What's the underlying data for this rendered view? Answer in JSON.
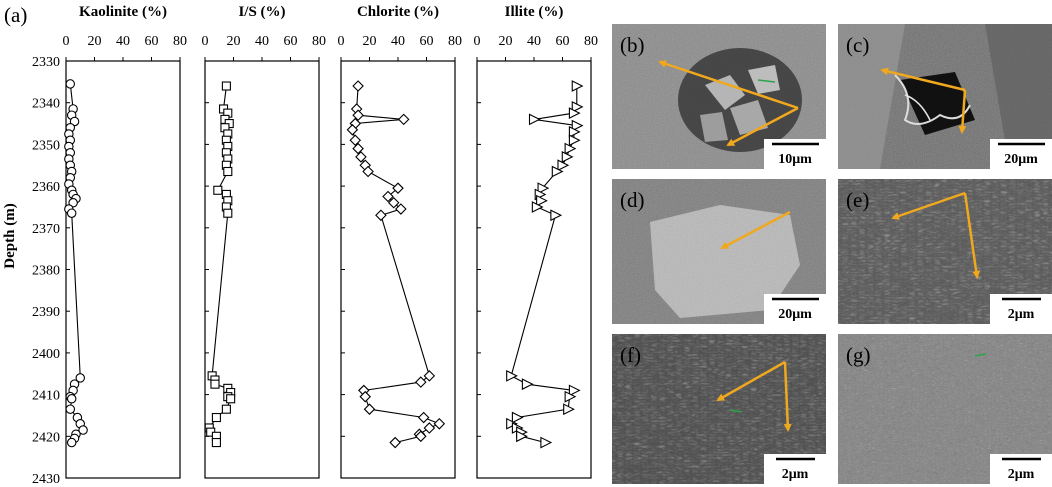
{
  "chart_data": [
    {
      "type": "line",
      "title": "Kaolinite (%)",
      "panel_label": "(a)",
      "ylabel": "Depth (m)",
      "xlim": [
        0,
        80
      ],
      "ylim": [
        2330,
        2430
      ],
      "x_ticks": [
        0,
        20,
        40,
        60,
        80
      ],
      "y_ticks": [
        2330,
        2340,
        2350,
        2360,
        2370,
        2380,
        2390,
        2400,
        2410,
        2420,
        2430
      ],
      "y_inverted": true,
      "marker": "circle",
      "points": [
        [
          3,
          2335.5
        ],
        [
          5,
          2341.5
        ],
        [
          4,
          2343
        ],
        [
          6,
          2344.5
        ],
        [
          3,
          2346
        ],
        [
          2,
          2347.5
        ],
        [
          3,
          2349
        ],
        [
          2,
          2350.5
        ],
        [
          3,
          2352
        ],
        [
          2,
          2353.5
        ],
        [
          3,
          2355
        ],
        [
          4,
          2356.5
        ],
        [
          3,
          2358
        ],
        [
          2,
          2359.5
        ],
        [
          4,
          2361
        ],
        [
          5,
          2362
        ],
        [
          7,
          2363
        ],
        [
          5,
          2364
        ],
        [
          2,
          2365.5
        ],
        [
          4,
          2366.5
        ],
        [
          10,
          2406
        ],
        [
          6,
          2407.5
        ],
        [
          5,
          2409
        ],
        [
          3,
          2410.5
        ],
        [
          4,
          2411
        ],
        [
          3,
          2413.5
        ],
        [
          8,
          2415.5
        ],
        [
          10,
          2417
        ],
        [
          12,
          2418.5
        ],
        [
          7,
          2419.5
        ],
        [
          6,
          2420.5
        ],
        [
          4,
          2421.5
        ]
      ]
    },
    {
      "type": "line",
      "title": "I/S (%)",
      "xlim": [
        0,
        80
      ],
      "ylim": [
        2330,
        2430
      ],
      "x_ticks": [
        0,
        20,
        40,
        60,
        80
      ],
      "y_inverted": true,
      "marker": "square",
      "points": [
        [
          15,
          2336
        ],
        [
          13,
          2341.5
        ],
        [
          16,
          2342.5
        ],
        [
          14,
          2344
        ],
        [
          17,
          2345
        ],
        [
          14,
          2346
        ],
        [
          16,
          2347.5
        ],
        [
          15,
          2349
        ],
        [
          16,
          2350.5
        ],
        [
          15,
          2352
        ],
        [
          16,
          2353.5
        ],
        [
          15,
          2355
        ],
        [
          16,
          2356.5
        ],
        [
          9,
          2361
        ],
        [
          15,
          2362
        ],
        [
          16,
          2363.5
        ],
        [
          15,
          2365
        ],
        [
          16,
          2366.5
        ],
        [
          5,
          2405.5
        ],
        [
          7,
          2406.5
        ],
        [
          7,
          2407.5
        ],
        [
          16,
          2408.5
        ],
        [
          18,
          2409.5
        ],
        [
          16,
          2410.5
        ],
        [
          18,
          2411
        ],
        [
          15,
          2413.5
        ],
        [
          8,
          2415.5
        ],
        [
          3,
          2418
        ],
        [
          4,
          2419
        ],
        [
          8,
          2420
        ],
        [
          8,
          2421.5
        ]
      ]
    },
    {
      "type": "line",
      "title": "Chlorite (%)",
      "xlim": [
        0,
        80
      ],
      "ylim": [
        2330,
        2430
      ],
      "x_ticks": [
        0,
        20,
        40,
        60,
        80
      ],
      "y_inverted": true,
      "marker": "diamond",
      "points": [
        [
          12,
          2336
        ],
        [
          11,
          2341.5
        ],
        [
          12,
          2343
        ],
        [
          44,
          2344
        ],
        [
          10,
          2345
        ],
        [
          8,
          2346.5
        ],
        [
          10,
          2349
        ],
        [
          12,
          2351
        ],
        [
          14,
          2353
        ],
        [
          17,
          2355
        ],
        [
          19,
          2356.5
        ],
        [
          40,
          2360.5
        ],
        [
          33,
          2362.5
        ],
        [
          37,
          2364
        ],
        [
          42,
          2365.5
        ],
        [
          28,
          2367
        ],
        [
          62,
          2405.5
        ],
        [
          56,
          2407
        ],
        [
          16,
          2409
        ],
        [
          17,
          2410.5
        ],
        [
          20,
          2413.5
        ],
        [
          58,
          2415.5
        ],
        [
          69,
          2417
        ],
        [
          62,
          2418
        ],
        [
          55,
          2419.5
        ],
        [
          56,
          2420
        ],
        [
          38,
          2421.5
        ]
      ]
    },
    {
      "type": "line",
      "title": "Illite (%)",
      "xlim": [
        0,
        80
      ],
      "ylim": [
        2330,
        2430
      ],
      "x_ticks": [
        0,
        20,
        40,
        60,
        80
      ],
      "y_inverted": true,
      "marker": "triangle-right",
      "points": [
        [
          70,
          2336
        ],
        [
          70,
          2341
        ],
        [
          68,
          2342.5
        ],
        [
          40,
          2344
        ],
        [
          70,
          2345.5
        ],
        [
          68,
          2347
        ],
        [
          68,
          2349
        ],
        [
          65,
          2351
        ],
        [
          63,
          2353
        ],
        [
          60,
          2355
        ],
        [
          56,
          2356.5
        ],
        [
          46,
          2360.5
        ],
        [
          44,
          2362
        ],
        [
          45,
          2363.5
        ],
        [
          42,
          2365
        ],
        [
          55,
          2367
        ],
        [
          24,
          2405.5
        ],
        [
          35,
          2407.5
        ],
        [
          68,
          2409
        ],
        [
          65,
          2410.5
        ],
        [
          64,
          2413.5
        ],
        [
          28,
          2415.5
        ],
        [
          24,
          2417
        ],
        [
          28,
          2418
        ],
        [
          31,
          2419
        ],
        [
          31,
          2420
        ],
        [
          48,
          2421.5
        ]
      ]
    }
  ],
  "photos": [
    {
      "label": "(b)",
      "scale": "10μm"
    },
    {
      "label": "(c)",
      "scale": "20μm"
    },
    {
      "label": "(d)",
      "scale": "20μm"
    },
    {
      "label": "(e)",
      "scale": "2μm"
    },
    {
      "label": "(f)",
      "scale": "2μm"
    },
    {
      "label": "(g)",
      "scale": "2μm"
    }
  ],
  "colors": {
    "arrow": "#f0a81e",
    "mineral_hint": "#2aa34a",
    "line": "#000000"
  }
}
